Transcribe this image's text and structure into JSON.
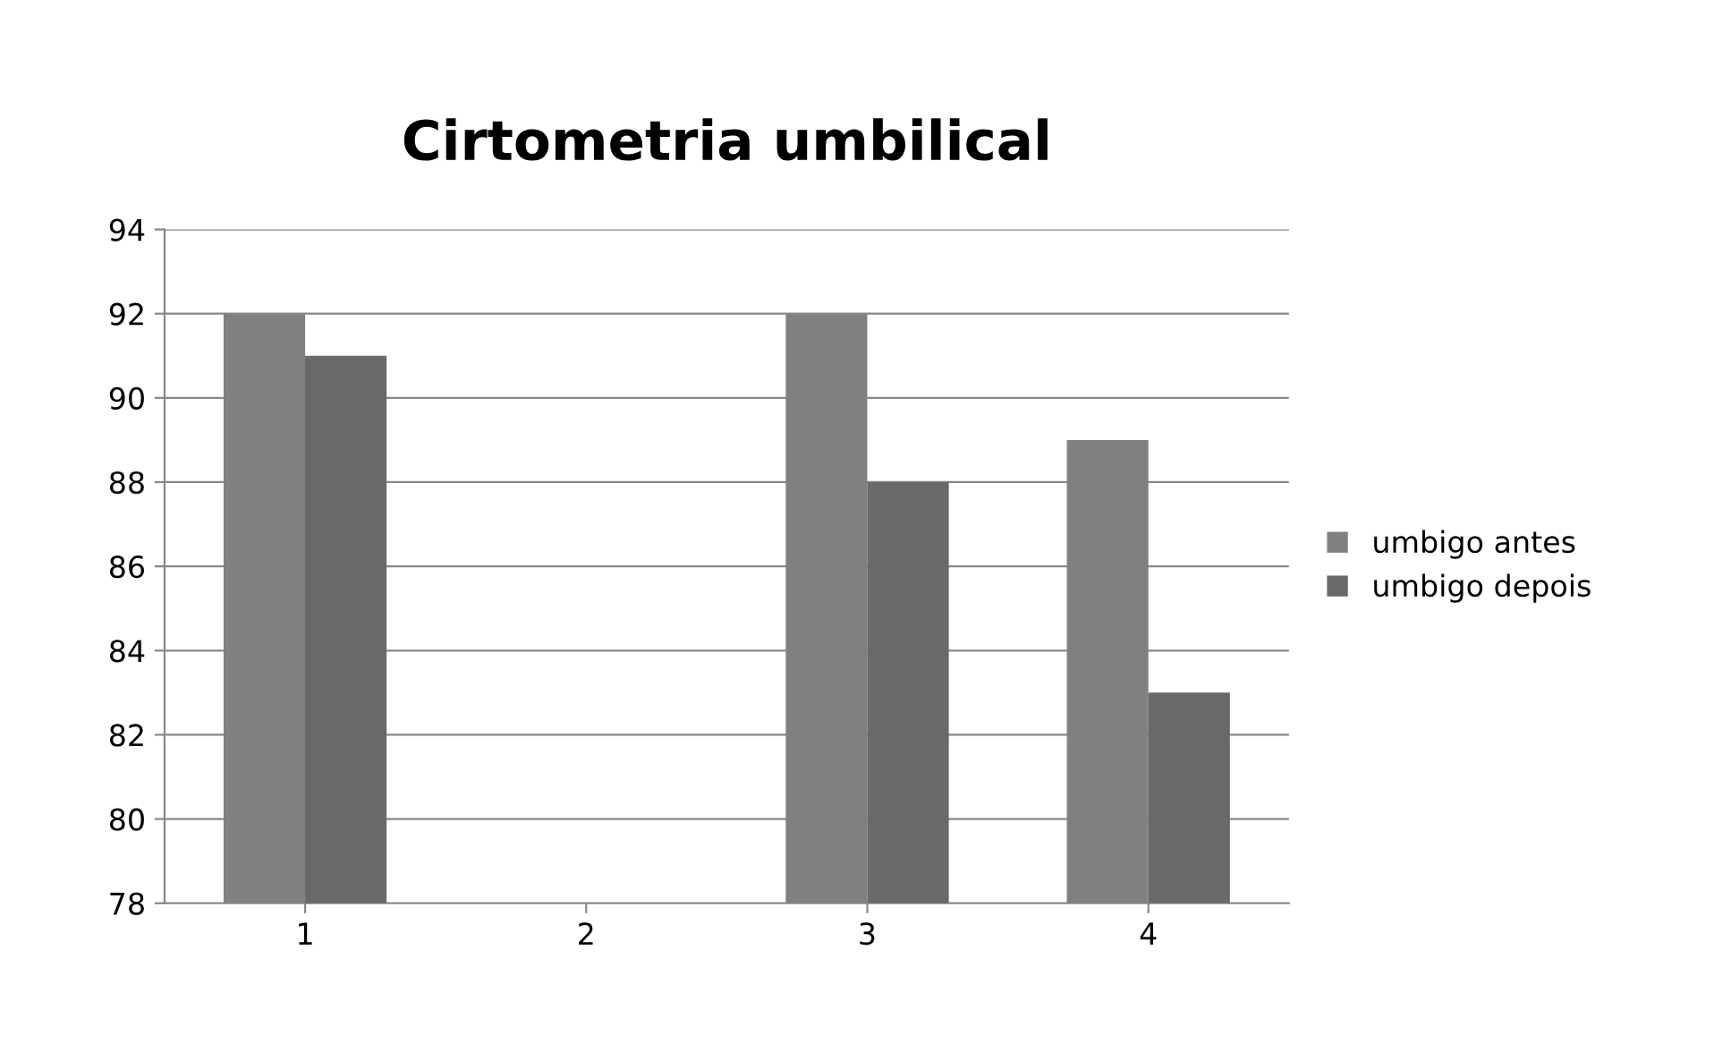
{
  "chart_data": {
    "type": "bar",
    "title": "Cirtometria umbilical",
    "categories": [
      "1",
      "2",
      "3",
      "4"
    ],
    "series": [
      {
        "name": "umbigo antes",
        "color": "#808080",
        "values": [
          92,
          null,
          92,
          89
        ]
      },
      {
        "name": "umbigo depois",
        "color": "#696969",
        "values": [
          91,
          null,
          88,
          83
        ]
      }
    ],
    "ylim": [
      78,
      94
    ],
    "yticks": [
      78,
      80,
      82,
      84,
      86,
      88,
      90,
      92,
      94
    ],
    "grid": "y",
    "legend": "right"
  }
}
